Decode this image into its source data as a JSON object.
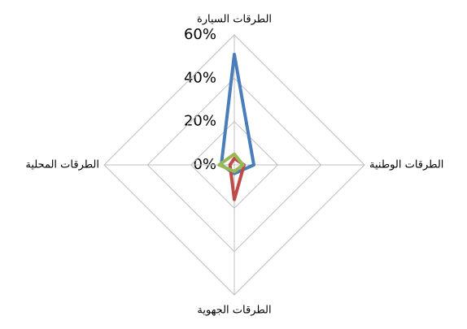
{
  "chart_data": {
    "type": "radar",
    "categories": [
      "الطرقات السيارة",
      "الطرقات الوطنية",
      "الطرقات الجهوية",
      "الطرقات المحلية"
    ],
    "series": [
      {
        "color": "#4a7ebb",
        "values": [
          51,
          9,
          4,
          6
        ]
      },
      {
        "color": "#be4b48",
        "values": [
          3,
          4.5,
          16,
          2
        ]
      },
      {
        "color": "#98b954",
        "values": [
          5,
          4,
          3,
          7
        ]
      }
    ],
    "ylim": [
      0,
      60
    ],
    "yticks": [
      {
        "value": 0,
        "label": "0%"
      },
      {
        "value": 20,
        "label": "20%"
      },
      {
        "value": 40,
        "label": "40%"
      },
      {
        "value": 60,
        "label": "60%"
      }
    ],
    "grid": true
  }
}
